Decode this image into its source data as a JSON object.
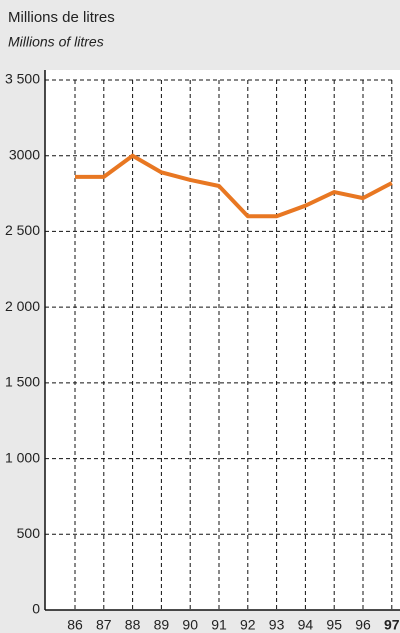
{
  "chart_data": {
    "type": "line",
    "title": "Millions de litres",
    "subtitle": "Millions of litres",
    "categories": [
      "86",
      "87",
      "88",
      "89",
      "90",
      "91",
      "92",
      "93",
      "94",
      "95",
      "96",
      "97"
    ],
    "values": [
      2860,
      2860,
      3000,
      2890,
      2840,
      2800,
      2600,
      2600,
      2670,
      2760,
      2720,
      2820
    ],
    "color": "#e87722",
    "ylim": [
      0,
      3500
    ],
    "yticks": [
      0,
      500,
      {
        "value": 1000,
        "label": "1 000"
      },
      {
        "value": 1500,
        "label": "1 500"
      },
      {
        "value": 2000,
        "label": "2 000"
      },
      {
        "value": 2500,
        "label": "2 500"
      },
      3000,
      {
        "value": 3500,
        "label": "3 500"
      }
    ],
    "grid": true
  }
}
